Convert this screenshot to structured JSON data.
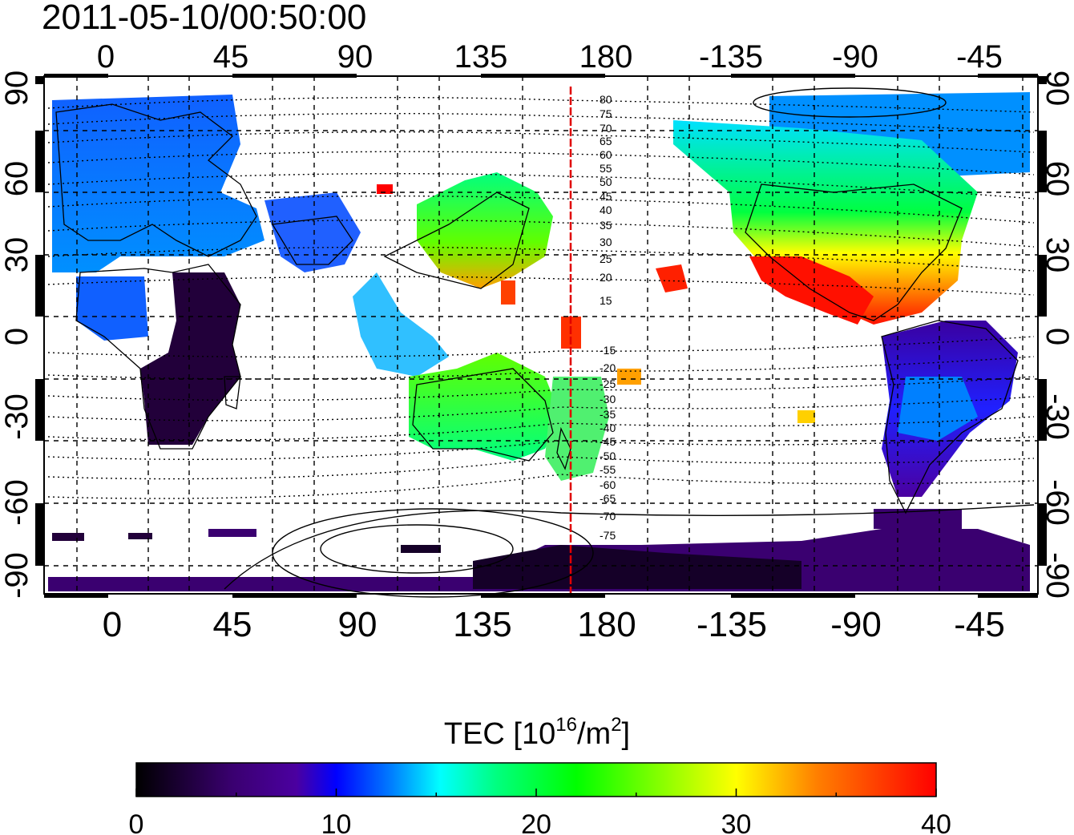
{
  "title": "2011-05-10/00:50:00",
  "map": {
    "top_lon_labels": [
      "0",
      "45",
      "90",
      "135",
      "180",
      "-135",
      "-90",
      "-45"
    ],
    "bottom_lon_labels": [
      "0",
      "45",
      "90",
      "135",
      "180",
      "-135",
      "-90",
      "-45"
    ],
    "left_lat_labels": [
      "90",
      "60",
      "30",
      "0",
      "-30",
      "-60",
      "-90"
    ],
    "right_lat_labels": [
      "90",
      "60",
      "30",
      "0",
      "-30",
      "-60",
      "-90"
    ],
    "contour_labels": [
      "80",
      "75",
      "70",
      "65",
      "60",
      "55",
      "50",
      "45",
      "40",
      "35",
      "30",
      "25",
      "20",
      "15",
      "-15",
      "-20",
      "-25",
      "-30",
      "-35",
      "-40",
      "-45",
      "-50",
      "-55",
      "-60",
      "-65",
      "-70",
      "-75"
    ],
    "marker_line_lon": 168
  },
  "colorbar": {
    "title_prefix": "TEC  [10",
    "title_sup": "16",
    "title_mid": "/m",
    "title_sup2": "2",
    "title_suffix": "]",
    "ticks": [
      "0",
      "10",
      "20",
      "30",
      "40"
    ],
    "range": [
      0,
      40
    ],
    "colors": [
      "#000000",
      "#3a0070",
      "#4b00a0",
      "#0000ff",
      "#0080ff",
      "#00ffff",
      "#00ff80",
      "#00ff00",
      "#80ff00",
      "#ffff00",
      "#ff8000",
      "#ff0000"
    ]
  }
}
